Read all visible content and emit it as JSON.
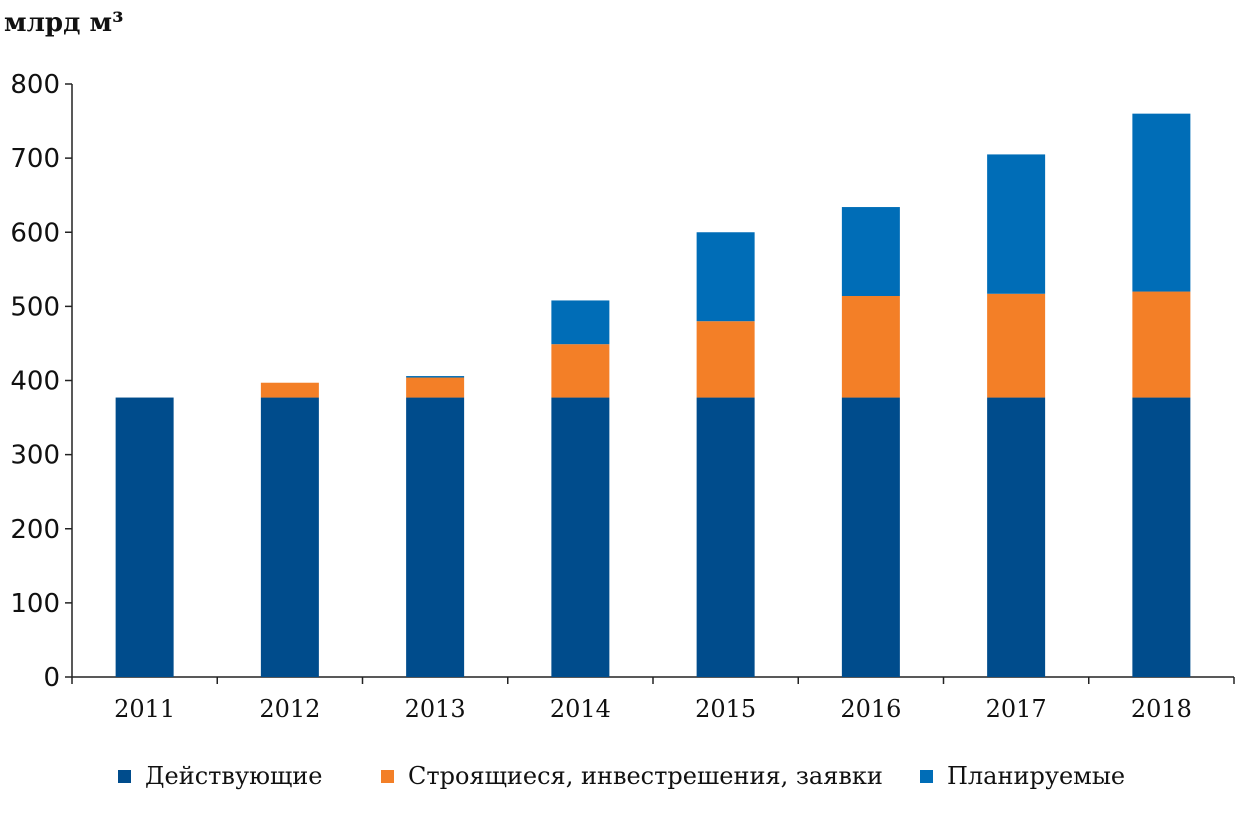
{
  "chart_data": {
    "type": "bar",
    "stacked": true,
    "unit_label": "млрд м³",
    "categories": [
      "2011",
      "2012",
      "2013",
      "2014",
      "2015",
      "2016",
      "2017",
      "2018"
    ],
    "series": [
      {
        "name": "Действующие",
        "color": "#004C8C",
        "values": [
          377,
          377,
          377,
          377,
          377,
          377,
          377,
          377
        ]
      },
      {
        "name": "Строящиеся, инвестрешения, заявки",
        "color": "#F37F27",
        "values": [
          0,
          20,
          27,
          72,
          103,
          137,
          140,
          143
        ]
      },
      {
        "name": "Планируемые",
        "color": "#006DB7",
        "values": [
          0,
          0,
          2,
          59,
          120,
          120,
          188,
          240
        ]
      }
    ],
    "ylim": [
      0,
      800
    ],
    "yticks": [
      0,
      100,
      200,
      300,
      400,
      500,
      600,
      700,
      800
    ],
    "grid": false,
    "legend_position": "bottom"
  }
}
